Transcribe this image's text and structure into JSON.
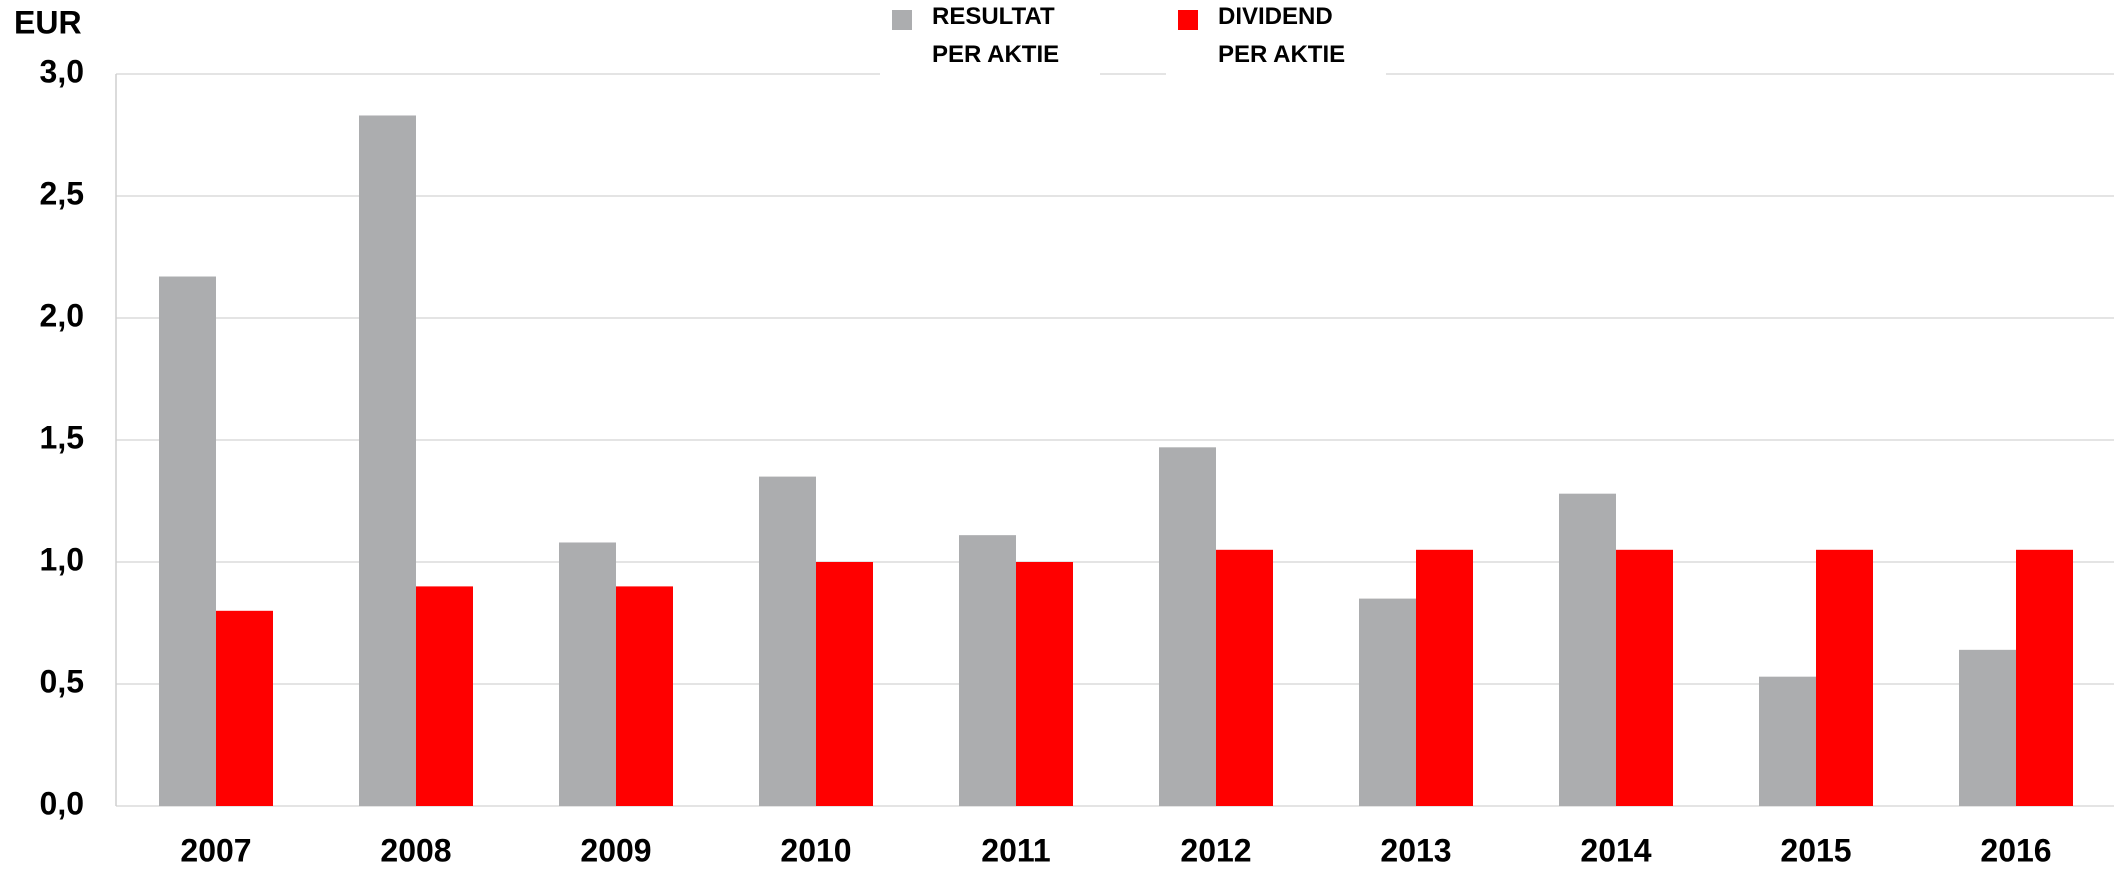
{
  "chart_data": {
    "type": "bar",
    "y_axis_label": "EUR",
    "categories": [
      "2007",
      "2008",
      "2009",
      "2010",
      "2011",
      "2012",
      "2013",
      "2014",
      "2015",
      "2016"
    ],
    "series": [
      {
        "name": "RESULTAT PER AKTIE",
        "color": "#acadaf",
        "values": [
          2.17,
          2.83,
          1.08,
          1.35,
          1.11,
          1.47,
          0.85,
          1.28,
          0.53,
          0.64
        ]
      },
      {
        "name": "DIVIDEND PER AKTIE",
        "color": "#ff0000",
        "values": [
          0.8,
          0.9,
          0.9,
          1.0,
          1.0,
          1.05,
          1.05,
          1.05,
          1.05,
          1.05
        ]
      }
    ],
    "ylim": [
      0,
      3
    ],
    "yticks": [
      {
        "value": 0,
        "label": "0,0"
      },
      {
        "value": 0.5,
        "label": "0,5"
      },
      {
        "value": 1,
        "label": "1,0"
      },
      {
        "value": 1.5,
        "label": "1,5"
      },
      {
        "value": 2,
        "label": "2,0"
      },
      {
        "value": 2.5,
        "label": "2,5"
      },
      {
        "value": 3,
        "label": "3,0"
      }
    ],
    "grid": true,
    "legend": "top"
  }
}
